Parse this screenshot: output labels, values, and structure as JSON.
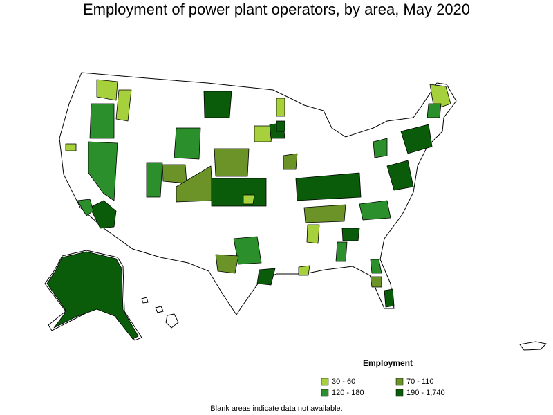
{
  "title": "Employment of power plant operators, by area, May 2020",
  "legend": {
    "title": "Employment",
    "items": [
      {
        "label": "30 - 60",
        "color": "#a6d13c"
      },
      {
        "label": "70 - 110",
        "color": "#6b9327"
      },
      {
        "label": "120 - 180",
        "color": "#2b8f2b"
      },
      {
        "label": "190 - 1,740",
        "color": "#0a5c0a"
      }
    ]
  },
  "note": "Blank areas indicate data not available."
}
